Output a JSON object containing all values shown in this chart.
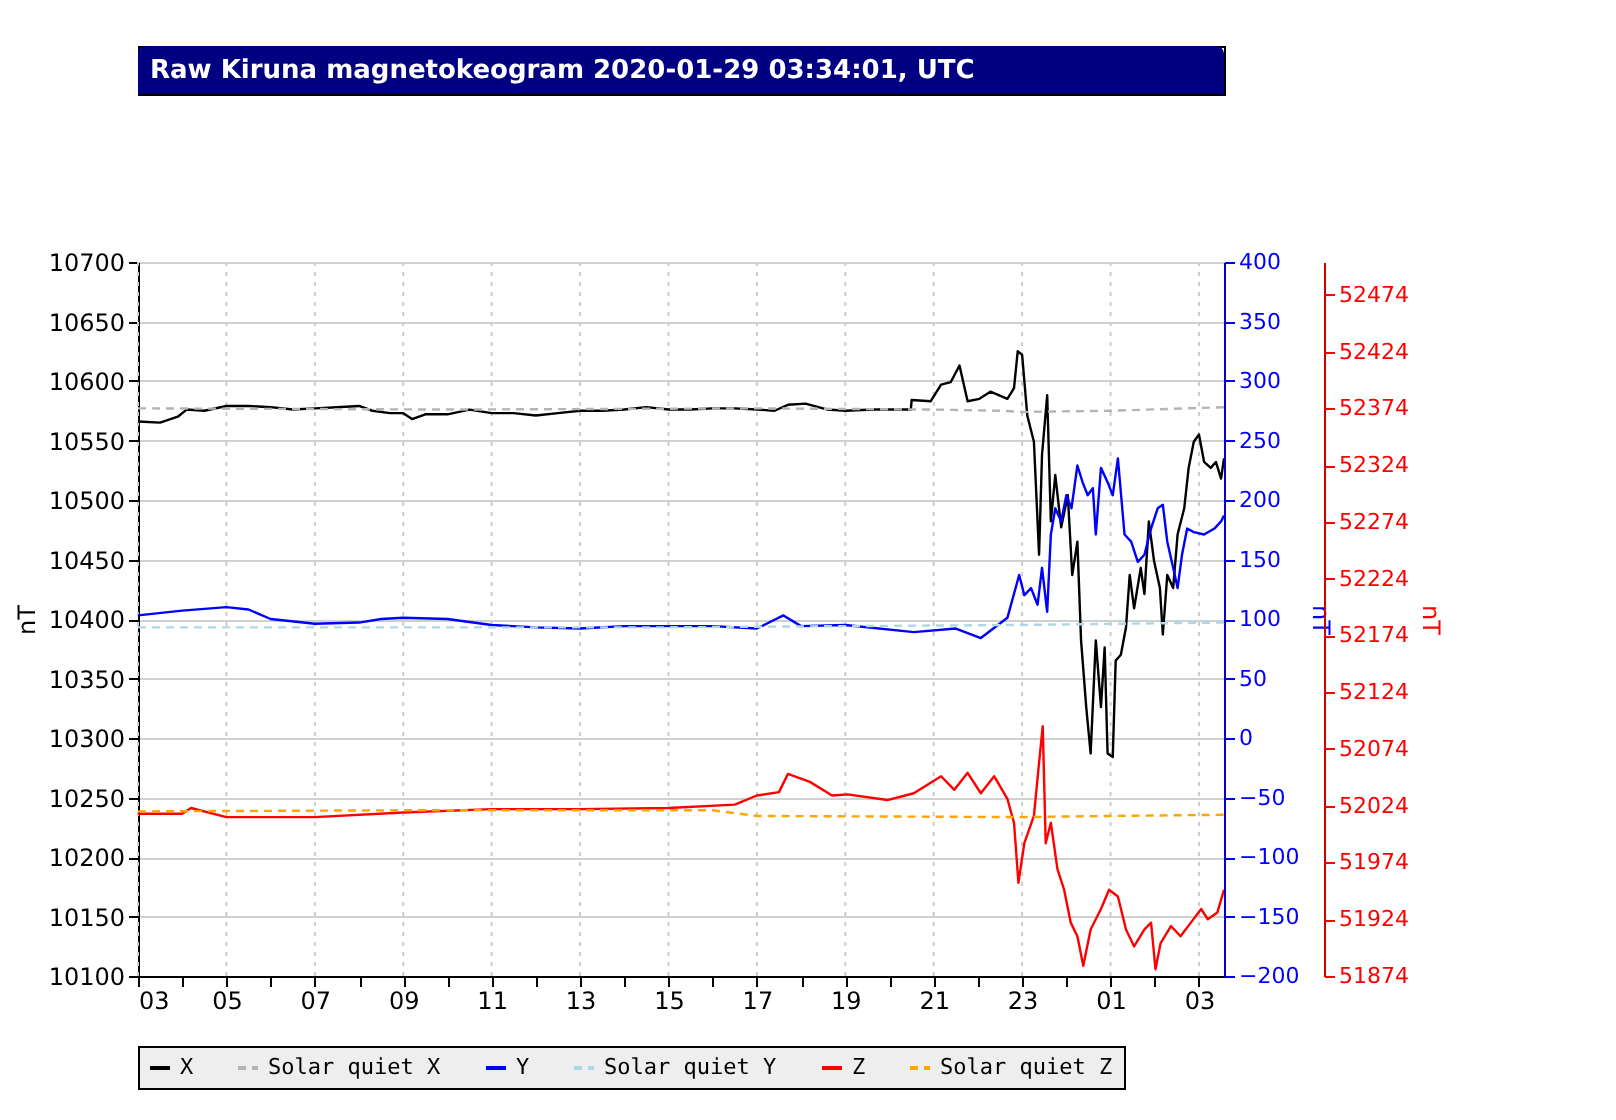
{
  "chart_data": {
    "type": "line",
    "title": "Raw Kiruna magnetokeogram 2020-01-29 03:34:01, UTC",
    "ylabel": "nT",
    "y2label": "nT",
    "y3label": "nT",
    "xlim": [
      "2020-01-28T03:00",
      "2020-01-29T03:34"
    ],
    "xticks": [
      {
        "value": "2020-01-28T03:00",
        "label": "03"
      },
      {
        "value": "2020-01-28T04:00",
        "label": null
      },
      {
        "value": "2020-01-28T05:00",
        "label": "05"
      },
      {
        "value": "2020-01-28T06:00",
        "label": null
      },
      {
        "value": "2020-01-28T07:00",
        "label": "07"
      },
      {
        "value": "2020-01-28T08:00",
        "label": null
      },
      {
        "value": "2020-01-28T09:00",
        "label": "09"
      },
      {
        "value": "2020-01-28T10:00",
        "label": null
      },
      {
        "value": "2020-01-28T11:00",
        "label": "11"
      },
      {
        "value": "2020-01-28T12:00",
        "label": null
      },
      {
        "value": "2020-01-28T13:00",
        "label": "13"
      },
      {
        "value": "2020-01-28T14:00",
        "label": null
      },
      {
        "value": "2020-01-28T15:00",
        "label": "15"
      },
      {
        "value": "2020-01-28T16:00",
        "label": null
      },
      {
        "value": "2020-01-28T17:00",
        "label": "17"
      },
      {
        "value": "2020-01-28T18:00",
        "label": null
      },
      {
        "value": "2020-01-28T19:00",
        "label": "19"
      },
      {
        "value": "2020-01-28T20:00",
        "label": null
      },
      {
        "value": "2020-01-28T21:00",
        "label": "21"
      },
      {
        "value": "2020-01-28T22:00",
        "label": null
      },
      {
        "value": "2020-01-28T23:00",
        "label": "23"
      },
      {
        "value": "2020-01-29T00:00",
        "label": null
      },
      {
        "value": "2020-01-29T01:00",
        "label": "01"
      },
      {
        "value": "2020-01-29T02:00",
        "label": null
      },
      {
        "value": "2020-01-29T03:00",
        "label": "03"
      }
    ],
    "ylim": [
      10100,
      10700
    ],
    "yticks": [
      10100,
      10150,
      10200,
      10250,
      10300,
      10350,
      10400,
      10450,
      10500,
      10550,
      10600,
      10650,
      10700
    ],
    "y2lim": [
      -200,
      400
    ],
    "y2ticks": [
      -200,
      -150,
      -100,
      -50,
      0,
      50,
      100,
      150,
      200,
      250,
      300,
      350,
      400
    ],
    "y3lim": [
      51874,
      52503
    ],
    "y3ticks": [
      51874,
      51924,
      51974,
      52024,
      52074,
      52124,
      52174,
      52224,
      52274,
      52324,
      52374,
      52424,
      52474
    ],
    "grid": true,
    "legend": "bottom",
    "series": [
      {
        "name": "X",
        "color": "#000000",
        "axis": "y",
        "line_style": "solid",
        "x": [
          "2020-01-28T03:00",
          "2020-01-28T03:30",
          "2020-01-28T03:54",
          "2020-01-28T04:06",
          "2020-01-28T04:30",
          "2020-01-28T05:00",
          "2020-01-28T05:30",
          "2020-01-28T06:00",
          "2020-01-28T06:30",
          "2020-01-28T07:00",
          "2020-01-28T07:30",
          "2020-01-28T08:00",
          "2020-01-28T08:18",
          "2020-01-28T08:42",
          "2020-01-28T09:00",
          "2020-01-28T09:12",
          "2020-01-28T09:30",
          "2020-01-28T10:00",
          "2020-01-28T10:30",
          "2020-01-28T11:00",
          "2020-01-28T11:30",
          "2020-01-28T12:00",
          "2020-01-28T12:30",
          "2020-01-28T13:00",
          "2020-01-28T13:30",
          "2020-01-28T14:00",
          "2020-01-28T14:30",
          "2020-01-28T15:00",
          "2020-01-28T15:30",
          "2020-01-28T16:00",
          "2020-01-28T16:30",
          "2020-01-28T17:00",
          "2020-01-28T17:24",
          "2020-01-28T17:42",
          "2020-01-28T18:06",
          "2020-01-28T18:36",
          "2020-01-28T19:00",
          "2020-01-28T19:39",
          "2020-01-28T20:29",
          "2020-01-28T20:30",
          "2020-01-28T20:56",
          "2020-01-28T21:10",
          "2020-01-28T21:23",
          "2020-01-28T21:35",
          "2020-01-28T21:46",
          "2020-01-28T22:02",
          "2020-01-28T22:17",
          "2020-01-28T22:40",
          "2020-01-28T22:49",
          "2020-01-28T22:54",
          "2020-01-28T23:00",
          "2020-01-28T23:07",
          "2020-01-28T23:16",
          "2020-01-28T23:23",
          "2020-01-28T23:27",
          "2020-01-28T23:34",
          "2020-01-28T23:39",
          "2020-01-28T23:45",
          "2020-01-28T23:53",
          "2020-01-29T00:02",
          "2020-01-29T00:08",
          "2020-01-29T00:15",
          "2020-01-29T00:20",
          "2020-01-29T00:27",
          "2020-01-29T00:33",
          "2020-01-29T00:40",
          "2020-01-29T00:47",
          "2020-01-29T00:52",
          "2020-01-29T00:56",
          "2020-01-29T01:03",
          "2020-01-29T01:07",
          "2020-01-29T01:14",
          "2020-01-29T01:21",
          "2020-01-29T01:26",
          "2020-01-29T01:32",
          "2020-01-29T01:41",
          "2020-01-29T01:46",
          "2020-01-29T01:52",
          "2020-01-29T01:59",
          "2020-01-29T02:07",
          "2020-01-29T02:11",
          "2020-01-29T02:17",
          "2020-01-29T02:25",
          "2020-01-29T02:31",
          "2020-01-29T02:40",
          "2020-01-29T02:46",
          "2020-01-29T02:53",
          "2020-01-29T03:00",
          "2020-01-29T03:07",
          "2020-01-29T03:16",
          "2020-01-29T03:23",
          "2020-01-29T03:30",
          "2020-01-29T03:34"
        ],
        "values": [
          10566,
          10565,
          10570,
          10576,
          10575,
          10579,
          10579,
          10578,
          10576,
          10577,
          10578,
          10579,
          10575,
          10573,
          10573,
          10568,
          10572,
          10572,
          10576,
          10573,
          10573,
          10571,
          10573,
          10575,
          10575,
          10576,
          10578,
          10576,
          10576,
          10577,
          10577,
          10576,
          10575,
          10580,
          10581,
          10576,
          10575,
          10576,
          10576,
          10584,
          10583,
          10597,
          10599,
          10613,
          10583,
          10585,
          10591,
          10585,
          10594,
          10625,
          10622,
          10571,
          10549,
          10454,
          10538,
          10588,
          10482,
          10521,
          10477,
          10504,
          10437,
          10465,
          10382,
          10326,
          10287,
          10382,
          10326,
          10376,
          10287,
          10284,
          10365,
          10370,
          10393,
          10437,
          10409,
          10443,
          10421,
          10482,
          10449,
          10426,
          10387,
          10437,
          10426,
          10471,
          10493,
          10527,
          10549,
          10555,
          10532,
          10527,
          10532,
          10518,
          10535
        ]
      },
      {
        "name": "Solar quiet X",
        "color": "#b4b4b4",
        "axis": "y",
        "line_style": "dashed",
        "x": [
          "2020-01-28T03:00",
          "2020-01-28T10:00",
          "2020-01-28T17:00",
          "2020-01-28T21:00",
          "2020-01-28T22:30",
          "2020-01-28T23:00",
          "2020-01-29T01:00",
          "2020-01-29T03:34"
        ],
        "values": [
          10577,
          10576,
          10577,
          10576,
          10575,
          10574,
          10575,
          10578
        ]
      },
      {
        "name": "Y",
        "color": "#0000ff",
        "axis": "y2",
        "line_style": "solid",
        "x": [
          "2020-01-28T03:00",
          "2020-01-28T04:00",
          "2020-01-28T05:00",
          "2020-01-28T05:30",
          "2020-01-28T06:00",
          "2020-01-28T07:00",
          "2020-01-28T08:00",
          "2020-01-28T08:30",
          "2020-01-28T09:00",
          "2020-01-28T10:00",
          "2020-01-28T11:00",
          "2020-01-28T12:00",
          "2020-01-28T13:00",
          "2020-01-28T14:00",
          "2020-01-28T15:00",
          "2020-01-28T16:00",
          "2020-01-28T17:00",
          "2020-01-28T17:36",
          "2020-01-28T18:00",
          "2020-01-28T19:00",
          "2020-01-28T20:33",
          "2020-01-28T21:30",
          "2020-01-28T22:04",
          "2020-01-28T22:40",
          "2020-01-28T22:56",
          "2020-01-28T23:03",
          "2020-01-28T23:12",
          "2020-01-28T23:21",
          "2020-01-28T23:27",
          "2020-01-28T23:34",
          "2020-01-28T23:39",
          "2020-01-28T23:45",
          "2020-01-28T23:53",
          "2020-01-29T00:00",
          "2020-01-29T00:07",
          "2020-01-29T00:15",
          "2020-01-29T00:22",
          "2020-01-29T00:29",
          "2020-01-29T00:36",
          "2020-01-29T00:40",
          "2020-01-29T00:47",
          "2020-01-29T00:56",
          "2020-01-29T01:03",
          "2020-01-29T01:10",
          "2020-01-29T01:19",
          "2020-01-29T01:28",
          "2020-01-29T01:37",
          "2020-01-29T01:46",
          "2020-01-29T01:55",
          "2020-01-29T02:04",
          "2020-01-29T02:11",
          "2020-01-29T02:17",
          "2020-01-29T02:25",
          "2020-01-29T02:31",
          "2020-01-29T02:37",
          "2020-01-29T02:44",
          "2020-01-29T02:53",
          "2020-01-29T03:07",
          "2020-01-29T03:21",
          "2020-01-29T03:30",
          "2020-01-29T03:34"
        ],
        "values": [
          103,
          107,
          110,
          108,
          100,
          96,
          97,
          100,
          101,
          100,
          95,
          93,
          92,
          94,
          94,
          94,
          92,
          103,
          94,
          95,
          89,
          92,
          84,
          101,
          137,
          120,
          126,
          112,
          143,
          106,
          171,
          193,
          182,
          204,
          193,
          229,
          215,
          204,
          210,
          171,
          227,
          215,
          204,
          235,
          171,
          165,
          148,
          154,
          176,
          193,
          196,
          165,
          143,
          126,
          154,
          176,
          173,
          171,
          176,
          182,
          187
        ]
      },
      {
        "name": "Solar quiet Y",
        "color": "#add8e6",
        "axis": "y2",
        "line_style": "dashed",
        "x": [
          "2020-01-28T03:00",
          "2020-01-28T15:00",
          "2020-01-28T23:00",
          "2020-01-29T03:34"
        ],
        "values": [
          93,
          93,
          95,
          97
        ]
      },
      {
        "name": "Z",
        "color": "#ff0000",
        "axis": "y3",
        "line_style": "solid",
        "x": [
          "2020-01-28T03:00",
          "2020-01-28T04:00",
          "2020-01-28T04:12",
          "2020-01-28T05:00",
          "2020-01-28T07:00",
          "2020-01-28T09:00",
          "2020-01-28T11:00",
          "2020-01-28T13:00",
          "2020-01-28T15:00",
          "2020-01-28T16:30",
          "2020-01-28T17:00",
          "2020-01-28T17:30",
          "2020-01-28T17:42",
          "2020-01-28T18:12",
          "2020-01-28T18:42",
          "2020-01-28T19:03",
          "2020-01-28T19:57",
          "2020-01-28T20:33",
          "2020-01-28T21:10",
          "2020-01-28T21:28",
          "2020-01-28T21:46",
          "2020-01-28T22:04",
          "2020-01-28T22:22",
          "2020-01-28T22:40",
          "2020-01-28T22:49",
          "2020-01-28T22:55",
          "2020-01-28T23:03",
          "2020-01-28T23:16",
          "2020-01-28T23:23",
          "2020-01-28T23:28",
          "2020-01-28T23:32",
          "2020-01-28T23:39",
          "2020-01-28T23:48",
          "2020-01-28T23:57",
          "2020-01-29T00:06",
          "2020-01-29T00:15",
          "2020-01-29T00:23",
          "2020-01-29T00:33",
          "2020-01-29T00:47",
          "2020-01-29T00:58",
          "2020-01-29T01:10",
          "2020-01-29T01:21",
          "2020-01-29T01:32",
          "2020-01-29T01:46",
          "2020-01-29T01:55",
          "2020-01-29T02:01",
          "2020-01-29T02:08",
          "2020-01-29T02:22",
          "2020-01-29T02:35",
          "2020-01-29T02:49",
          "2020-01-29T03:03",
          "2020-01-29T03:12",
          "2020-01-29T03:25",
          "2020-01-29T03:34"
        ],
        "values": [
          52017,
          52017,
          52022,
          52014,
          52014,
          52018,
          52021,
          52021,
          52022,
          52025,
          52033,
          52036,
          52052,
          52045,
          52033,
          52034,
          52029,
          52035,
          52050,
          52038,
          52053,
          52035,
          52050,
          52030,
          52009,
          51956,
          51991,
          52015,
          52062,
          52094,
          51991,
          52009,
          51968,
          51950,
          51921,
          51909,
          51883,
          51915,
          51933,
          51950,
          51944,
          51915,
          51900,
          51915,
          51921,
          51880,
          51903,
          51918,
          51909,
          51921,
          51933,
          51924,
          51930,
          51950
        ]
      },
      {
        "name": "Solar quiet Z",
        "color": "#ffa500",
        "axis": "y3",
        "line_style": "dashed",
        "x": [
          "2020-01-28T03:00",
          "2020-01-28T09:00",
          "2020-01-28T16:00",
          "2020-01-28T17:00",
          "2020-01-28T23:00",
          "2020-01-29T01:00",
          "2020-01-29T03:34"
        ],
        "values": [
          52019,
          52020,
          52020,
          52015,
          52014,
          52015,
          52016
        ]
      }
    ]
  }
}
